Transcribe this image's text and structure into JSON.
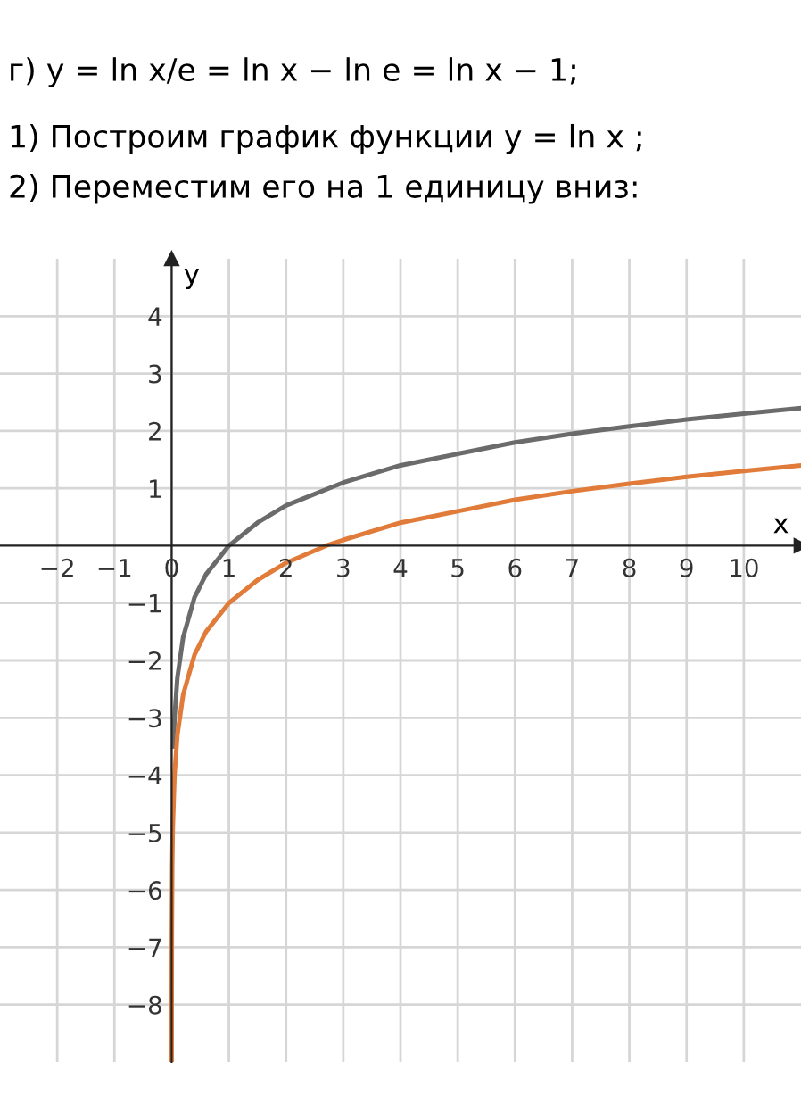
{
  "chart_data": {
    "type": "line",
    "title": "г) y = ln x/e = ln x − ln e = ln x − 1;",
    "annotations": [
      "1) Построим график функции y = ln x ;",
      "2) Переместим его на 1 единицу вниз:"
    ],
    "xlabel": "x",
    "ylabel": "y",
    "xlim": [
      -3,
      11
    ],
    "ylim": [
      -9,
      5
    ],
    "xticks": [
      -2,
      -1,
      0,
      1,
      2,
      3,
      4,
      5,
      6,
      7,
      8,
      9,
      10
    ],
    "yticks": [
      -8,
      -7,
      -6,
      -5,
      -4,
      -3,
      -2,
      -1,
      1,
      2,
      3,
      4
    ],
    "grid": true,
    "legend": false,
    "marker": "none",
    "line_style": "solid",
    "series": [
      {
        "color": "#6b6b6b",
        "x": [
          0.03,
          0.05,
          0.1,
          0.2,
          0.4,
          0.6,
          1,
          1.5,
          2,
          3,
          4,
          5,
          6,
          7,
          8,
          9,
          10,
          11
        ],
        "values": [
          -3.5,
          -3,
          -2.3,
          -1.6,
          -0.9,
          -0.5,
          0,
          0.4,
          0.7,
          1.1,
          1.4,
          1.6,
          1.8,
          1.95,
          2.08,
          2.2,
          2.3,
          2.4
        ]
      },
      {
        "color": "#e07b39",
        "x": [
          0.0003,
          0.001,
          0.003,
          0.01,
          0.02,
          0.05,
          0.1,
          0.2,
          0.4,
          0.6,
          1,
          1.5,
          2,
          2.7,
          3,
          4,
          5,
          6,
          7,
          8,
          9,
          10,
          11
        ],
        "values": [
          -9,
          -7.9,
          -6.8,
          -5.6,
          -4.9,
          -4,
          -3.3,
          -2.6,
          -1.9,
          -1.5,
          -1,
          -0.6,
          -0.3,
          0,
          0.1,
          0.4,
          0.6,
          0.8,
          0.95,
          1.08,
          1.2,
          1.3,
          1.4
        ]
      }
    ]
  }
}
